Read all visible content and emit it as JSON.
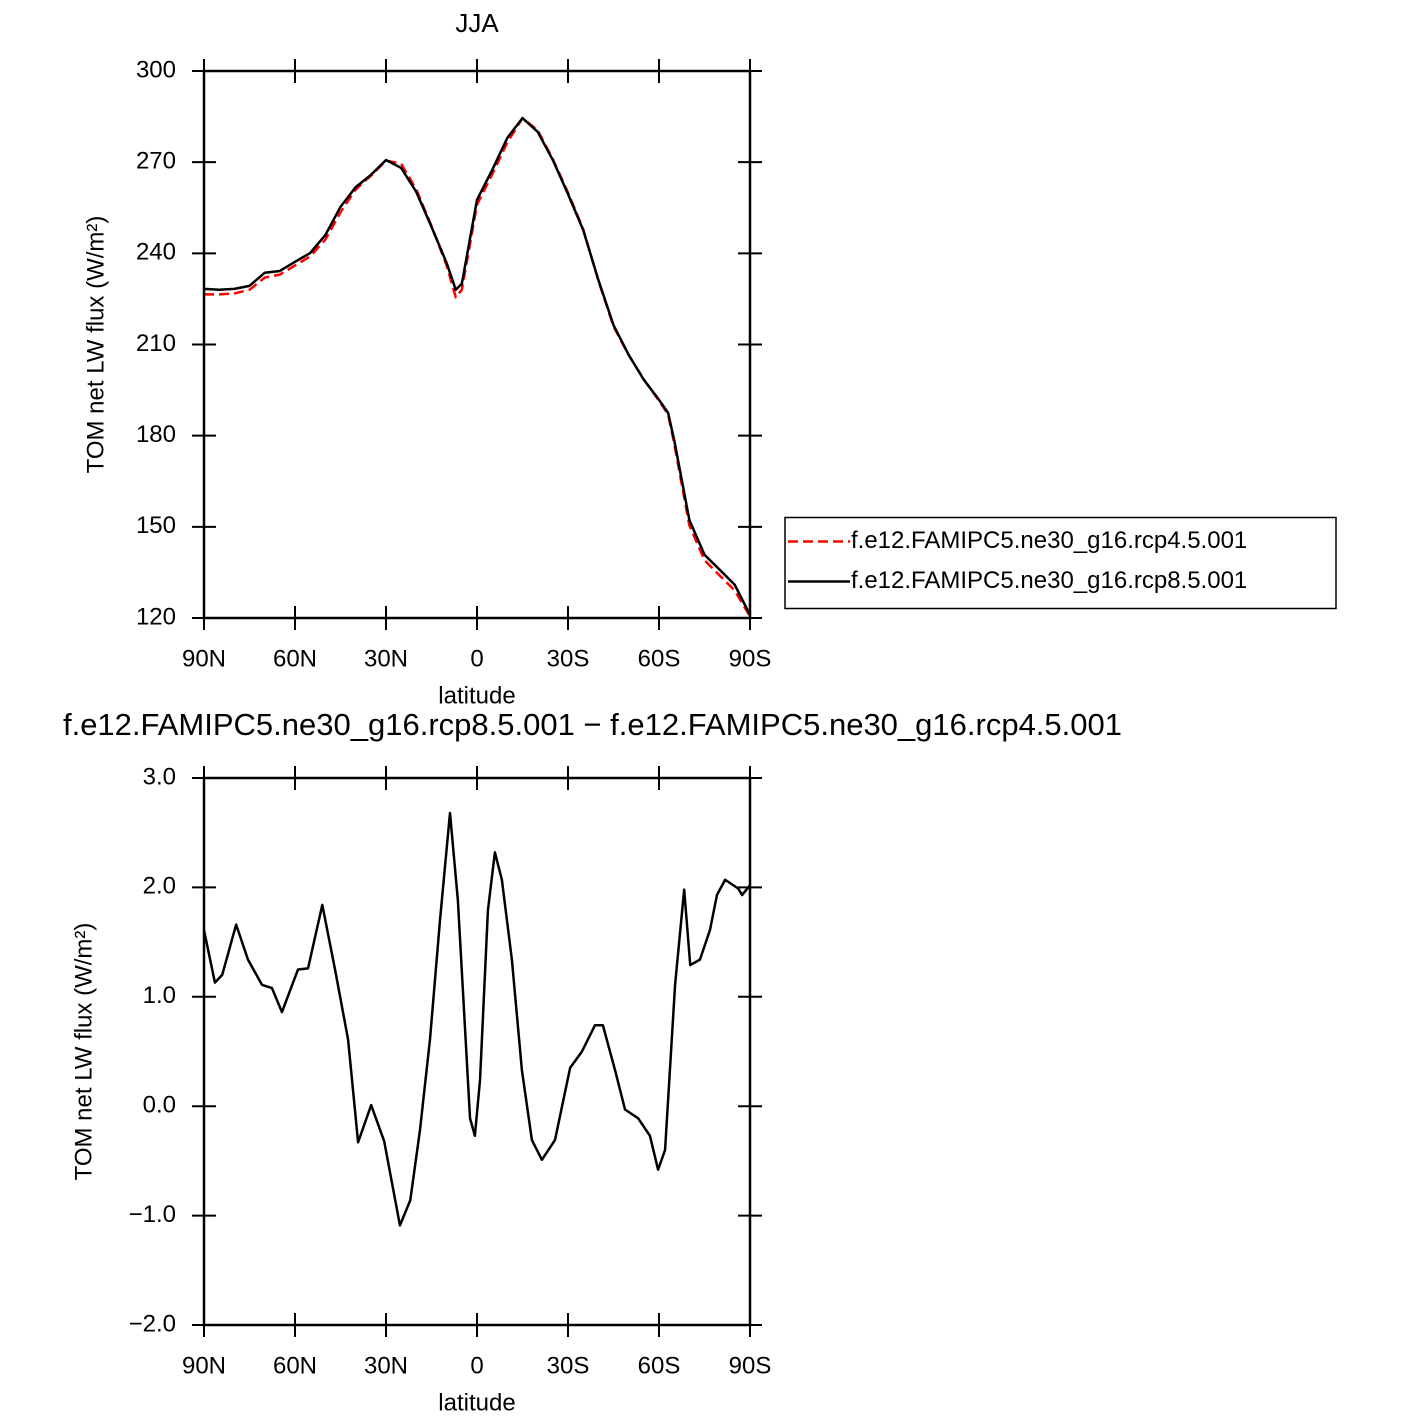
{
  "chart_data": [
    {
      "type": "line",
      "title": "JJA",
      "xlabel": "latitude",
      "ylabel": "TOM net LW flux (W/m²)",
      "x": [
        90,
        85,
        80,
        75,
        70,
        65,
        60,
        55,
        50,
        45,
        40,
        35,
        30,
        25,
        20,
        15,
        10,
        7,
        5,
        0,
        -5,
        -10,
        -15,
        -20,
        -25,
        -30,
        -35,
        -40,
        -45,
        -50,
        -55,
        -60,
        -63,
        -65,
        -70,
        -75,
        -80,
        -85,
        -90
      ],
      "series": [
        {
          "name": "f.e12.FAMIPC5.ne30_g16.rcp4.5.001",
          "color": "#ff0000",
          "linestyle": "dashed",
          "values": [
            226.5,
            226.5,
            226.8,
            228,
            232,
            233,
            236,
            239,
            244.5,
            253.5,
            261,
            265.5,
            270.5,
            269.5,
            261,
            249,
            236,
            225.5,
            228,
            256,
            266,
            276.5,
            284.5,
            280.5,
            271,
            260,
            248,
            231,
            216,
            206.5,
            198.5,
            191.5,
            187,
            177.5,
            150.5,
            139,
            134,
            129,
            120.5
          ]
        },
        {
          "name": "f.e12.FAMIPC5.ne30_g16.rcp8.5.001",
          "color": "#000000",
          "linestyle": "solid",
          "values": [
            228.3,
            228,
            228.3,
            229.3,
            233.6,
            234.2,
            237.2,
            240.1,
            246,
            255.3,
            261.8,
            265.8,
            270.7,
            268.1,
            260.2,
            248.7,
            236.8,
            228,
            230,
            257.6,
            267.4,
            278,
            284.5,
            280,
            270.7,
            259.5,
            247.7,
            231.3,
            216.4,
            206.6,
            198.4,
            191.8,
            187.5,
            178.6,
            152.3,
            140.8,
            135.9,
            130.9,
            121
          ]
        }
      ],
      "xlim": [
        90,
        -90
      ],
      "xticks": [
        {
          "value": 90,
          "label": "90N"
        },
        {
          "value": 60,
          "label": "60N"
        },
        {
          "value": 30,
          "label": "30N"
        },
        0,
        {
          "value": -30,
          "label": "30S"
        },
        {
          "value": -60,
          "label": "60S"
        },
        {
          "value": -90,
          "label": "90S"
        }
      ],
      "ylim": [
        120,
        300
      ],
      "yticks": [
        120,
        150,
        180,
        210,
        240,
        270,
        300
      ],
      "legend": "right"
    },
    {
      "type": "line",
      "title": "f.e12.FAMIPC5.ne30_g16.rcp8.5.001 − f.e12.FAMIPC5.ne30_g16.rcp4.5.001",
      "xlabel": "latitude",
      "ylabel": "TOM net LW flux (W/m²)",
      "x": [
        90,
        86.4,
        84,
        79.4,
        75.5,
        70.9,
        67.6,
        64.3,
        59,
        55.7,
        51,
        46.8,
        42.5,
        39.2,
        34.9,
        30.6,
        25.4,
        22,
        18.8,
        15.5,
        12.2,
        8.9,
        6.3,
        2.3,
        0.7,
        -1,
        -3.6,
        -5.9,
        -8.2,
        -11.5,
        -14.8,
        -18.1,
        -21.4,
        -25.7,
        -30.7,
        -34.6,
        -38.9,
        -41.5,
        -45.5,
        -48.8,
        -53.1,
        -57,
        -59.7,
        -62,
        -65.3,
        -68.3,
        -70.3,
        -73.5,
        -76.8,
        -79.1,
        -81.8,
        -86.1,
        -87.4,
        -90
      ],
      "series": [
        {
          "color": "#000000",
          "linestyle": "solid",
          "values": [
            1.61,
            1.13,
            1.2,
            1.66,
            1.34,
            1.11,
            1.08,
            0.86,
            1.25,
            1.26,
            1.84,
            1.25,
            0.61,
            -0.33,
            0.01,
            -0.32,
            -1.09,
            -0.86,
            -0.22,
            0.61,
            1.7,
            2.68,
            1.88,
            -0.11,
            -0.27,
            0.24,
            1.79,
            2.32,
            2.07,
            1.34,
            0.33,
            -0.31,
            -0.49,
            -0.31,
            0.35,
            0.5,
            0.74,
            0.74,
            0.33,
            -0.03,
            -0.11,
            -0.27,
            -0.58,
            -0.4,
            1.11,
            1.98,
            1.29,
            1.34,
            1.61,
            1.93,
            2.07,
            1.99,
            1.93,
            2.02
          ]
        }
      ],
      "xlim": [
        90,
        -90
      ],
      "xticks": [
        {
          "value": 90,
          "label": "90N"
        },
        {
          "value": 60,
          "label": "60N"
        },
        {
          "value": 30,
          "label": "30N"
        },
        0,
        {
          "value": -30,
          "label": "30S"
        },
        {
          "value": -60,
          "label": "60S"
        },
        {
          "value": -90,
          "label": "90S"
        }
      ],
      "ylim": [
        -2,
        3
      ],
      "yticks": [
        {
          "value": -2,
          "label": "−2.0"
        },
        {
          "value": -1,
          "label": "−1.0"
        },
        {
          "value": 0,
          "label": "0.0"
        },
        {
          "value": 1,
          "label": "1.0"
        },
        {
          "value": 2,
          "label": "2.0"
        },
        {
          "value": 3,
          "label": "3.0"
        }
      ]
    }
  ]
}
